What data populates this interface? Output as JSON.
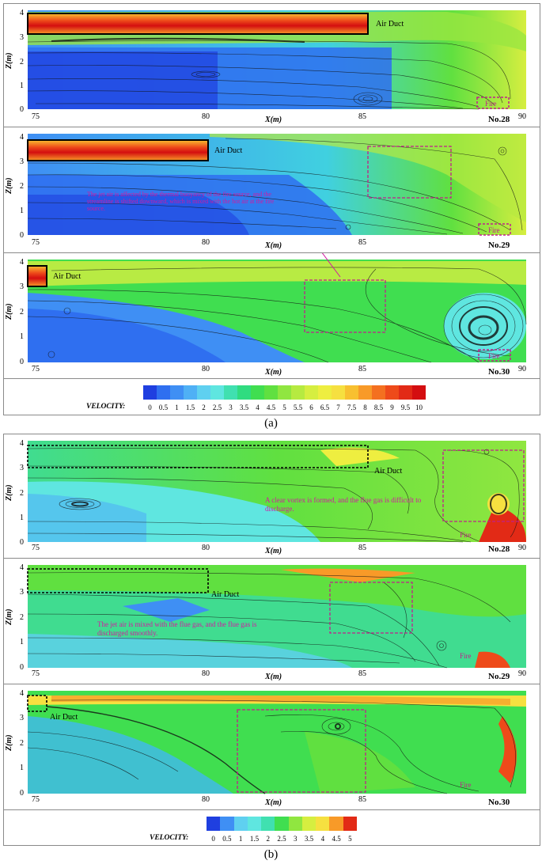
{
  "figure": {
    "sub_labels": [
      "(a)",
      "(b)"
    ],
    "axis": {
      "xlabel": "X(m)",
      "ylabel": "Z(m)",
      "x_ticks": [
        "75",
        "80",
        "85",
        "90"
      ],
      "y_ticks": [
        "0",
        "1",
        "2",
        "3",
        "4"
      ]
    },
    "labels": {
      "air_duct": "Air Duct",
      "fire": "Fire"
    },
    "group_a": {
      "panels": [
        {
          "id": "No.28",
          "duct_length": "long"
        },
        {
          "id": "No.29",
          "duct_length": "medium",
          "annotation": "The jet air is affected by the thermal buoyancy of the fire source, and the streamline is shifted downward, which is mixed with the hot air at the fire source."
        },
        {
          "id": "No.30",
          "duct_length": "short"
        }
      ],
      "colorbar": {
        "title": "VELOCITY:",
        "ticks": [
          "0",
          "0.5",
          "1",
          "1.5",
          "2",
          "2.5",
          "3",
          "3.5",
          "4",
          "4.5",
          "5",
          "5.5",
          "6",
          "6.5",
          "7",
          "7.5",
          "8",
          "8.5",
          "9",
          "9.5",
          "10"
        ],
        "colors": [
          "#1f3fe0",
          "#2f6ff0",
          "#3f8ff4",
          "#4fb0f5",
          "#5fd0f0",
          "#5fe6e0",
          "#40e0b0",
          "#30dc80",
          "#40de50",
          "#60e040",
          "#90e640",
          "#b6ea40",
          "#d6ee40",
          "#eeee40",
          "#f6e040",
          "#f8c030",
          "#f89a28",
          "#f47020",
          "#ee4a1a",
          "#e22a16",
          "#d40e10"
        ]
      }
    },
    "group_b": {
      "panels": [
        {
          "id": "No.28",
          "annotation": "A clear vortex is formed, and the flue gas is difficult to discharge."
        },
        {
          "id": "No.29",
          "annotation": "The jet air is mixed with the flue gas, and the flue gas is discharged smoothly."
        },
        {
          "id": "No.30"
        }
      ],
      "colorbar": {
        "title": "VELOCITY:",
        "ticks": [
          "0",
          "0.5",
          "1",
          "1.5",
          "2",
          "2.5",
          "3",
          "3.5",
          "4",
          "4.5",
          "5"
        ],
        "colors": [
          "#1f3fe0",
          "#3f8ff4",
          "#5fd0f0",
          "#5fe6e0",
          "#40e0b0",
          "#40de50",
          "#90e640",
          "#d6ee40",
          "#f6e040",
          "#f89a28",
          "#e22a16"
        ]
      }
    }
  }
}
